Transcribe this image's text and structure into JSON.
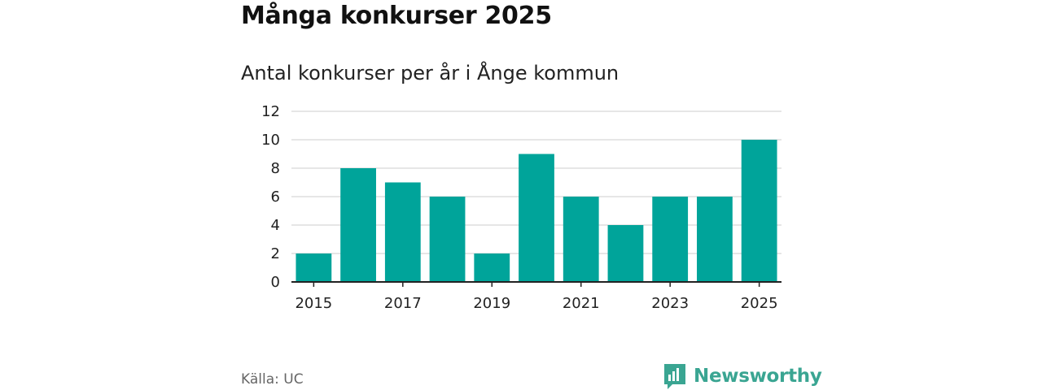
{
  "header": {
    "title": "Många konkurser 2025",
    "subtitle": "Antal konkurser per år i Ånge kommun"
  },
  "footer": {
    "source": "Källa: UC",
    "brand": "Newsworthy"
  },
  "colors": {
    "bar": "#00a49a",
    "grid": "#dddddd",
    "axis": "#222222",
    "brand": "#3aa592"
  },
  "chart_data": {
    "type": "bar",
    "title": "Många konkurser 2025",
    "subtitle": "Antal konkurser per år i Ånge kommun",
    "xlabel": "",
    "ylabel": "",
    "categories": [
      "2015",
      "2016",
      "2017",
      "2018",
      "2019",
      "2020",
      "2021",
      "2022",
      "2023",
      "2024",
      "2025"
    ],
    "values": [
      2,
      8,
      7,
      6,
      2,
      9,
      6,
      4,
      6,
      6,
      10
    ],
    "x_tick_labels": [
      "2015",
      "2017",
      "2019",
      "2021",
      "2023",
      "2025"
    ],
    "y_ticks": [
      0,
      2,
      4,
      6,
      8,
      10,
      12
    ],
    "ylim": [
      0,
      12
    ],
    "grid": true
  }
}
